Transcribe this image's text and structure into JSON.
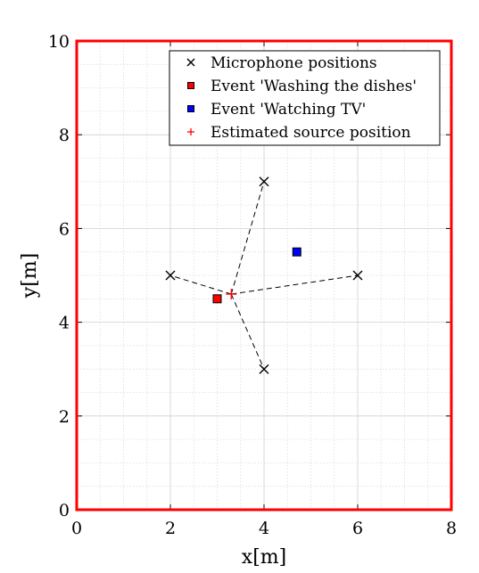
{
  "chart_data": {
    "type": "scatter",
    "xlabel": "x[m]",
    "ylabel": "y[m]",
    "xlim": [
      0,
      8
    ],
    "ylim": [
      0,
      10
    ],
    "xticks": [
      0,
      2,
      4,
      6,
      8
    ],
    "yticks": [
      0,
      2,
      4,
      6,
      8,
      10
    ],
    "grid": true,
    "minor_grid": true,
    "frame_color": "#ff0000",
    "legend_position": "top-right",
    "series": [
      {
        "name": "Microphone positions",
        "marker": "x",
        "color": "#000000",
        "points": [
          [
            2,
            5
          ],
          [
            4,
            7
          ],
          [
            6,
            5
          ],
          [
            4,
            3
          ]
        ]
      },
      {
        "name": "Event 'Washing the dishes'",
        "marker": "square",
        "color": "#ff0000",
        "points": [
          [
            3,
            4.5
          ]
        ]
      },
      {
        "name": "Event 'Watching TV'",
        "marker": "square",
        "color": "#0000ff",
        "points": [
          [
            4.7,
            5.5
          ]
        ]
      },
      {
        "name": "Estimated source position",
        "marker": "plus",
        "color": "#ff0000",
        "points": [
          [
            3.3,
            4.6
          ]
        ]
      }
    ],
    "dashed_lines_from": "Estimated source position",
    "dashed_lines_to": "Microphone positions"
  }
}
